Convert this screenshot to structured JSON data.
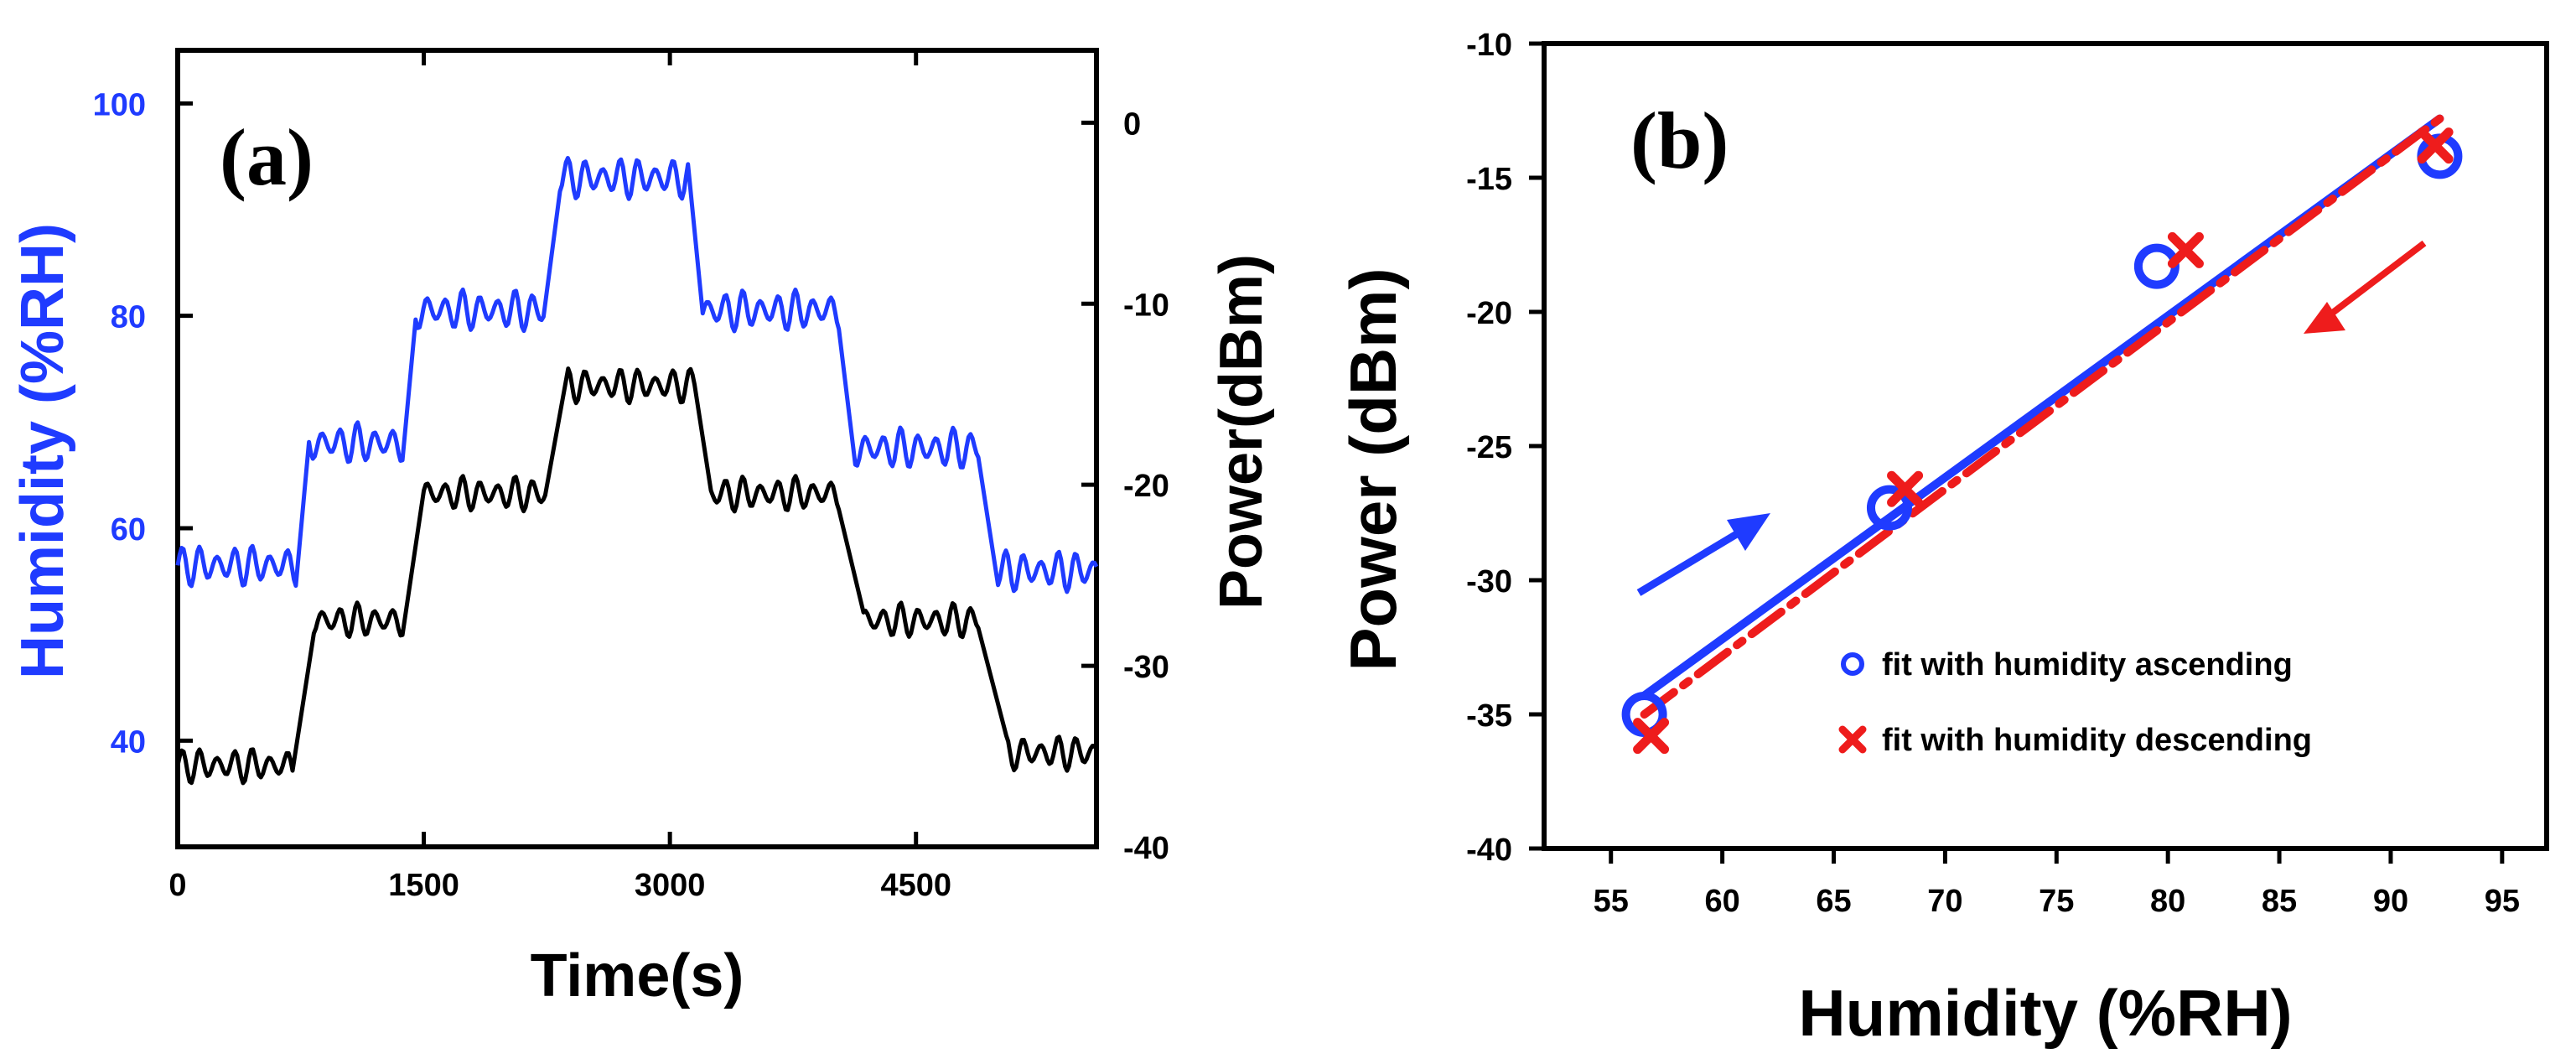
{
  "chart_data": [
    {
      "panel": "(a)",
      "type": "line",
      "xlabel": "Time(s)",
      "ylabel_left": "Humidity (%RH)",
      "ylabel_right": "Power(dBm)",
      "xlim": [
        0,
        5600
      ],
      "ylim_left": [
        30,
        105
      ],
      "ylim_right": [
        -40,
        4
      ],
      "xticks": [
        "0",
        "1500",
        "3000",
        "4500"
      ],
      "yticks_left": [
        "40",
        "60",
        "80",
        "100"
      ],
      "yticks_right": [
        "0",
        "-10",
        "-20",
        "-30",
        "-40"
      ],
      "series": [
        {
          "name": "Humidity",
          "axis": "left",
          "color": "#1f3bff",
          "steps": [
            {
              "t_start": 0,
              "t_end": 720,
              "value": 56.5
            },
            {
              "t_start": 800,
              "t_end": 1370,
              "value": 68
            },
            {
              "t_start": 1450,
              "t_end": 2230,
              "value": 80.5
            },
            {
              "t_start": 2330,
              "t_end": 3110,
              "value": 93
            },
            {
              "t_start": 3200,
              "t_end": 4030,
              "value": 80.5
            },
            {
              "t_start": 4130,
              "t_end": 4880,
              "value": 67.5
            },
            {
              "t_start": 5000,
              "t_end": 5600,
              "value": 56
            }
          ],
          "ripple_amplitude": 2.0
        },
        {
          "name": "Power",
          "axis": "right",
          "color": "#000000",
          "steps": [
            {
              "t_start": 0,
              "t_end": 700,
              "value": -35.5
            },
            {
              "t_start": 830,
              "t_end": 1370,
              "value": -27.5
            },
            {
              "t_start": 1500,
              "t_end": 2240,
              "value": -20.5
            },
            {
              "t_start": 2380,
              "t_end": 3150,
              "value": -14.5
            },
            {
              "t_start": 3250,
              "t_end": 4030,
              "value": -20.5
            },
            {
              "t_start": 4180,
              "t_end": 4880,
              "value": -27.5
            },
            {
              "t_start": 5050,
              "t_end": 5600,
              "value": -34.8
            }
          ],
          "ripple_amplitude": 1.0
        }
      ]
    },
    {
      "panel": "(b)",
      "type": "scatter",
      "xlabel": "Humidity (%RH)",
      "ylabel": "Power (dBm)",
      "xlim": [
        52,
        97
      ],
      "ylim": [
        -40,
        -10
      ],
      "xticks": [
        "55",
        "60",
        "65",
        "70",
        "75",
        "80",
        "85",
        "90",
        "95"
      ],
      "yticks": [
        "-10",
        "-15",
        "-20",
        "-25",
        "-30",
        "-35",
        "-40"
      ],
      "series": [
        {
          "name": "fit with humidity ascending",
          "marker": "circle",
          "color": "#1f3bff",
          "x": [
            56.5,
            67.5,
            79.5,
            92.2
          ],
          "y": [
            -35.0,
            -27.3,
            -18.3,
            -14.2
          ],
          "fit": {
            "x": [
              56.5,
              92.2
            ],
            "y": [
              -34.3,
              -12.8
            ]
          }
        },
        {
          "name": "fit with humidity descending",
          "marker": "x",
          "color": "#ee1c1c",
          "x": [
            56.8,
            68.2,
            80.8,
            92.0
          ],
          "y": [
            -35.8,
            -26.6,
            -17.7,
            -13.8
          ],
          "fit": {
            "x": [
              56.5,
              92.2
            ],
            "y": [
              -35.0,
              -12.8
            ]
          }
        }
      ],
      "annotations": [
        "ascending arrow (blue) near 57-65 %RH",
        "descending arrow (red) near 84-89 %RH"
      ]
    }
  ]
}
